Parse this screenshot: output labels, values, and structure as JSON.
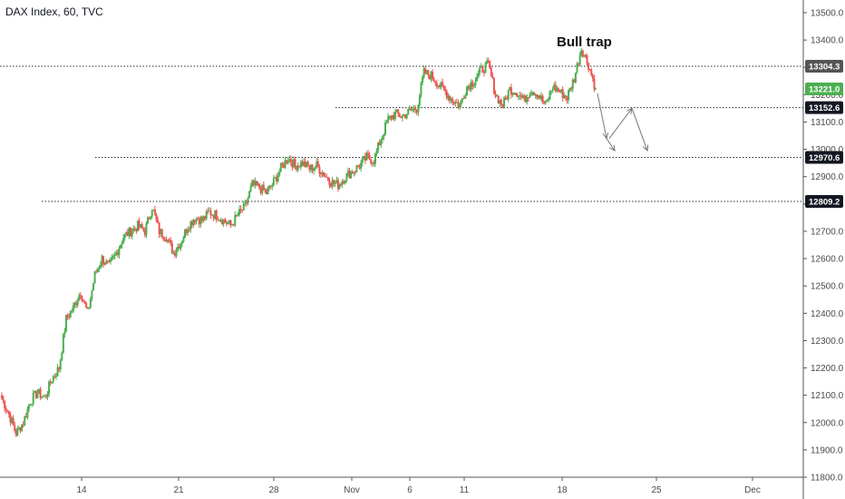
{
  "chart_data": {
    "type": "candlestick",
    "title": "DAX Index, 60, TVC",
    "y_axis": {
      "ticks": [
        11800,
        11900,
        12000,
        12100,
        12200,
        12300,
        12400,
        12500,
        12600,
        12700,
        12800,
        12900,
        13000,
        13100,
        13200,
        13300,
        13400,
        13500
      ],
      "tick_labels": [
        "11800.0",
        "11900.0",
        "12000.0",
        "12100.0",
        "12200.0",
        "12300.0",
        "12400.0",
        "12500.0",
        "12600.0",
        "12700.0",
        "12800.0",
        "12900.0",
        "13000.0",
        "13100.0",
        "13200.0",
        "13300.0",
        "13400.0",
        "13500.0"
      ],
      "range": [
        11790,
        13550
      ],
      "position": "right"
    },
    "x_axis": {
      "tick_labels": [
        "14",
        "21",
        "28",
        "Nov",
        "6",
        "11",
        "18",
        "25",
        "Dec"
      ]
    },
    "levels": [
      {
        "value": 13304.3,
        "label": "13304.3"
      },
      {
        "value": 13152.6,
        "label": "13152.6"
      },
      {
        "value": 12970.6,
        "label": "12970.6"
      },
      {
        "value": 12809.2,
        "label": "12809.2"
      }
    ],
    "last_price": {
      "value": 13221.0,
      "label": "13221.0"
    },
    "annotation": "Bull trap",
    "price_path": [
      12090,
      12030,
      11960,
      12000,
      12080,
      12110,
      12090,
      12160,
      12200,
      12380,
      12420,
      12480,
      12400,
      12540,
      12600,
      12570,
      12620,
      12680,
      12700,
      12720,
      12700,
      12790,
      12700,
      12680,
      12620,
      12660,
      12720,
      12750,
      12740,
      12770,
      12760,
      12740,
      12720,
      12760,
      12790,
      12870,
      12860,
      12840,
      12880,
      12930,
      12970,
      12940,
      12950,
      12930,
      12940,
      12910,
      12880,
      12870,
      12900,
      12920,
      12940,
      12970,
      12960,
      13040,
      13110,
      13130,
      13120,
      13140,
      13150,
      13280,
      13270,
      13240,
      13210,
      13180,
      13160,
      13230,
      13250,
      13290,
      13310,
      13200,
      13160,
      13220,
      13210,
      13180,
      13220,
      13200,
      13160,
      13230,
      13210,
      13190,
      13260,
      13370,
      13310,
      13221
    ],
    "projection": [
      {
        "from": 13205,
        "to": 13040
      },
      {
        "from": 13040,
        "to": 12995
      },
      {
        "from": 13040,
        "to": 13150
      },
      {
        "from": 13150,
        "to": 12995
      }
    ],
    "colors": {
      "bull": "#4caf50",
      "bear": "#ef5350",
      "level_line": "#2a2a2a",
      "level_badge": "#131722",
      "first_level_badge": "#555555",
      "last_price_badge": "#4caf50",
      "projection_arrow": "#777777",
      "axis_line": "#555555"
    }
  }
}
